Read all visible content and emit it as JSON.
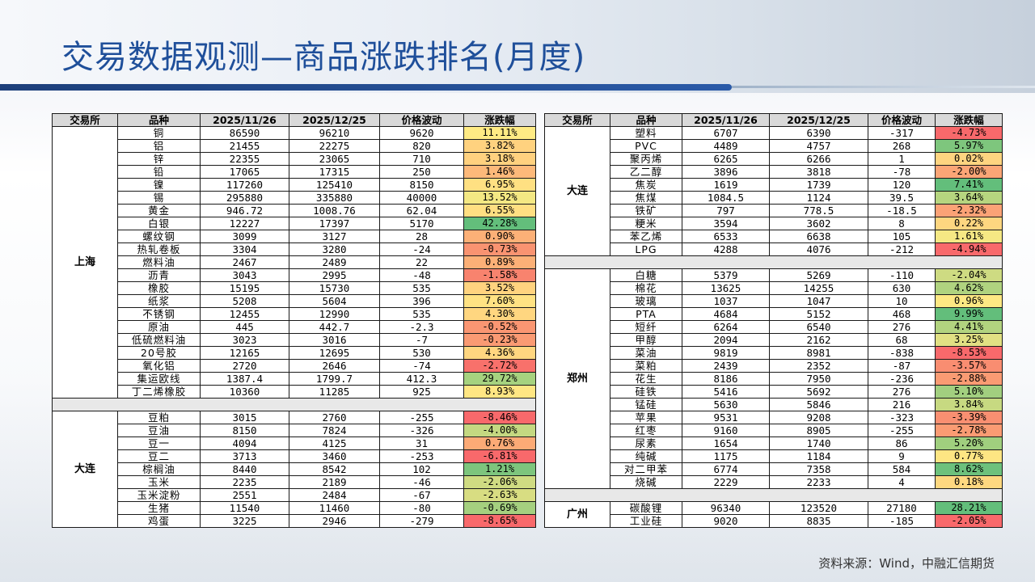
{
  "title": "交易数据观测—商品涨跌排名(月度)",
  "source": "资料来源：Wind，中融汇信期货",
  "colors": {
    "title": "#1f4f9a",
    "band": "#1d3f7a",
    "header_bg": "#d9d9d9"
  },
  "headers": [
    "交易所",
    "品种",
    "2025/11/26",
    "2025/12/25",
    "价格波动",
    "涨跌幅"
  ],
  "left": {
    "groups": [
      {
        "exchange": "上海",
        "rows": [
          {
            "name": "铜",
            "p1": "86590",
            "p2": "96210",
            "chg": "9620",
            "pct": "11.11%",
            "color": "#ffeb84"
          },
          {
            "name": "铝",
            "p1": "21455",
            "p2": "22275",
            "chg": "820",
            "pct": "3.82%",
            "color": "#ffd27f"
          },
          {
            "name": "锌",
            "p1": "22355",
            "p2": "23065",
            "chg": "710",
            "pct": "3.18%",
            "color": "#ffd17f"
          },
          {
            "name": "铅",
            "p1": "17065",
            "p2": "17315",
            "chg": "250",
            "pct": "1.46%",
            "color": "#fdb97a"
          },
          {
            "name": "镍",
            "p1": "117260",
            "p2": "125410",
            "chg": "8150",
            "pct": "6.95%",
            "color": "#ffe082"
          },
          {
            "name": "锡",
            "p1": "295880",
            "p2": "335880",
            "chg": "40000",
            "pct": "13.52%",
            "color": "#f4e883"
          },
          {
            "name": "黄金",
            "p1": "946.72",
            "p2": "1008.76",
            "chg": "62.04",
            "pct": "6.55%",
            "color": "#ffdf82"
          },
          {
            "name": "白银",
            "p1": "12227",
            "p2": "17397",
            "chg": "5170",
            "pct": "42.28%",
            "color": "#63be7b"
          },
          {
            "name": "螺纹钢",
            "p1": "3099",
            "p2": "3127",
            "chg": "28",
            "pct": "0.90%",
            "color": "#fcb077"
          },
          {
            "name": "热轧卷板",
            "p1": "3304",
            "p2": "3280",
            "chg": "-24",
            "pct": "-0.73%",
            "color": "#f99371"
          },
          {
            "name": "燃料油",
            "p1": "2467",
            "p2": "2489",
            "chg": "22",
            "pct": "0.89%",
            "color": "#fcb077"
          },
          {
            "name": "沥青",
            "p1": "3043",
            "p2": "2995",
            "chg": "-48",
            "pct": "-1.58%",
            "color": "#f8836e"
          },
          {
            "name": "橡胶",
            "p1": "15195",
            "p2": "15730",
            "chg": "535",
            "pct": "3.52%",
            "color": "#ffd37f"
          },
          {
            "name": "纸浆",
            "p1": "5208",
            "p2": "5604",
            "chg": "396",
            "pct": "7.60%",
            "color": "#ffe283"
          },
          {
            "name": "不锈钢",
            "p1": "12455",
            "p2": "12990",
            "chg": "535",
            "pct": "4.30%",
            "color": "#ffd680"
          },
          {
            "name": "原油",
            "p1": "445",
            "p2": "442.7",
            "chg": "-2.3",
            "pct": "-0.52%",
            "color": "#fa9672"
          },
          {
            "name": "低硫燃料油",
            "p1": "3023",
            "p2": "3016",
            "chg": "-7",
            "pct": "-0.23%",
            "color": "#fa9a73"
          },
          {
            "name": "20号胶",
            "p1": "12165",
            "p2": "12695",
            "chg": "530",
            "pct": "4.36%",
            "color": "#ffd680"
          },
          {
            "name": "氧化铝",
            "p1": "2720",
            "p2": "2646",
            "chg": "-74",
            "pct": "-2.72%",
            "color": "#f8716b"
          },
          {
            "name": "集运欧线",
            "p1": "1387.4",
            "p2": "1799.7",
            "chg": "412.3",
            "pct": "29.72%",
            "color": "#a6d27f"
          },
          {
            "name": "丁二烯橡胶",
            "p1": "10360",
            "p2": "11285",
            "chg": "925",
            "pct": "8.93%",
            "color": "#ffe683"
          }
        ]
      },
      {
        "exchange": "大连",
        "rows": [
          {
            "name": "豆粕",
            "p1": "3015",
            "p2": "2760",
            "chg": "-255",
            "pct": "-8.46%",
            "color": "#f8696b"
          },
          {
            "name": "豆油",
            "p1": "8150",
            "p2": "7824",
            "chg": "-326",
            "pct": "-4.00%",
            "color": "#c4d881"
          },
          {
            "name": "豆一",
            "p1": "4094",
            "p2": "4125",
            "chg": "31",
            "pct": "0.76%",
            "color": "#fcaa76"
          },
          {
            "name": "豆二",
            "p1": "3713",
            "p2": "3460",
            "chg": "-253",
            "pct": "-6.81%",
            "color": "#f8696b"
          },
          {
            "name": "棕榈油",
            "p1": "8440",
            "p2": "8542",
            "chg": "102",
            "pct": "1.21%",
            "color": "#7dc57d"
          },
          {
            "name": "玉米",
            "p1": "2235",
            "p2": "2189",
            "chg": "-46",
            "pct": "-2.06%",
            "color": "#cfdb82"
          },
          {
            "name": "玉米淀粉",
            "p1": "2551",
            "p2": "2484",
            "chg": "-67",
            "pct": "-2.63%",
            "color": "#d8dd82"
          },
          {
            "name": "生猪",
            "p1": "11540",
            "p2": "11460",
            "chg": "-80",
            "pct": "-0.69%",
            "color": "#a5d07f"
          },
          {
            "name": "鸡蛋",
            "p1": "3225",
            "p2": "2946",
            "chg": "-279",
            "pct": "-8.65%",
            "color": "#f8696b"
          }
        ]
      }
    ]
  },
  "right": {
    "groups": [
      {
        "exchange": "大连",
        "rows": [
          {
            "name": "塑料",
            "p1": "6707",
            "p2": "6390",
            "chg": "-317",
            "pct": "-4.73%",
            "color": "#f8696b"
          },
          {
            "name": "PVC",
            "p1": "4489",
            "p2": "4757",
            "chg": "268",
            "pct": "5.97%",
            "color": "#7ec67d"
          },
          {
            "name": "聚丙烯",
            "p1": "6265",
            "p2": "6266",
            "chg": "1",
            "pct": "0.02%",
            "color": "#fed480"
          },
          {
            "name": "乙二醇",
            "p1": "3896",
            "p2": "3818",
            "chg": "-78",
            "pct": "-2.00%",
            "color": "#fba576"
          },
          {
            "name": "焦炭",
            "p1": "1619",
            "p2": "1739",
            "chg": "120",
            "pct": "7.41%",
            "color": "#63be7b"
          },
          {
            "name": "焦煤",
            "p1": "1084.5",
            "p2": "1124",
            "chg": "39.5",
            "pct": "3.64%",
            "color": "#b6d57f"
          },
          {
            "name": "铁矿",
            "p1": "797",
            "p2": "778.5",
            "chg": "-18.5",
            "pct": "-2.32%",
            "color": "#fba276"
          },
          {
            "name": "粳米",
            "p1": "3594",
            "p2": "3602",
            "chg": "8",
            "pct": "0.22%",
            "color": "#fed680"
          },
          {
            "name": "苯乙烯",
            "p1": "6533",
            "p2": "6638",
            "chg": "105",
            "pct": "1.61%",
            "color": "#f5e884"
          },
          {
            "name": "LPG",
            "p1": "4288",
            "p2": "4076",
            "chg": "-212",
            "pct": "-4.94%",
            "color": "#f8696b"
          }
        ]
      },
      {
        "exchange": "郑州",
        "rows": [
          {
            "name": "白糖",
            "p1": "5379",
            "p2": "5269",
            "chg": "-110",
            "pct": "-2.04%",
            "color": "#cedb82"
          },
          {
            "name": "棉花",
            "p1": "13625",
            "p2": "14255",
            "chg": "630",
            "pct": "4.62%",
            "color": "#b0d37f"
          },
          {
            "name": "玻璃",
            "p1": "1037",
            "p2": "1047",
            "chg": "10",
            "pct": "0.96%",
            "color": "#fee883"
          },
          {
            "name": "PTA",
            "p1": "4684",
            "p2": "5152",
            "chg": "468",
            "pct": "9.99%",
            "color": "#63be7b"
          },
          {
            "name": "短纤",
            "p1": "6264",
            "p2": "6540",
            "chg": "276",
            "pct": "4.41%",
            "color": "#b2d37f"
          },
          {
            "name": "甲醇",
            "p1": "2094",
            "p2": "2162",
            "chg": "68",
            "pct": "3.25%",
            "color": "#e1e083"
          },
          {
            "name": "菜油",
            "p1": "9819",
            "p2": "8981",
            "chg": "-838",
            "pct": "-8.53%",
            "color": "#f8696b"
          },
          {
            "name": "菜粕",
            "p1": "2439",
            "p2": "2352",
            "chg": "-87",
            "pct": "-3.57%",
            "color": "#f98d71"
          },
          {
            "name": "花生",
            "p1": "8186",
            "p2": "7950",
            "chg": "-236",
            "pct": "-2.88%",
            "color": "#fa9b73"
          },
          {
            "name": "硅铁",
            "p1": "5416",
            "p2": "5692",
            "chg": "276",
            "pct": "5.10%",
            "color": "#a2cf7f"
          },
          {
            "name": "锰硅",
            "p1": "5630",
            "p2": "5846",
            "chg": "216",
            "pct": "3.84%",
            "color": "#c7d981"
          },
          {
            "name": "苹果",
            "p1": "9531",
            "p2": "9208",
            "chg": "-323",
            "pct": "-3.39%",
            "color": "#f98f71"
          },
          {
            "name": "红枣",
            "p1": "9160",
            "p2": "8905",
            "chg": "-255",
            "pct": "-2.78%",
            "color": "#fa9b73"
          },
          {
            "name": "尿素",
            "p1": "1654",
            "p2": "1740",
            "chg": "86",
            "pct": "5.20%",
            "color": "#a0cf7e"
          },
          {
            "name": "纯碱",
            "p1": "1175",
            "p2": "1184",
            "chg": "9",
            "pct": "0.77%",
            "color": "#fde583"
          },
          {
            "name": "对二甲苯",
            "p1": "6774",
            "p2": "7358",
            "chg": "584",
            "pct": "8.62%",
            "color": "#6dc17c"
          },
          {
            "name": "烧碱",
            "p1": "2229",
            "p2": "2233",
            "chg": "4",
            "pct": "0.18%",
            "color": "#fed880"
          }
        ]
      },
      {
        "exchange": "广州",
        "rows": [
          {
            "name": "碳酸锂",
            "p1": "96340",
            "p2": "123520",
            "chg": "27180",
            "pct": "28.21%",
            "color": "#63be7b"
          },
          {
            "name": "工业硅",
            "p1": "9020",
            "p2": "8835",
            "chg": "-185",
            "pct": "-2.05%",
            "color": "#f8696b"
          }
        ]
      }
    ]
  }
}
